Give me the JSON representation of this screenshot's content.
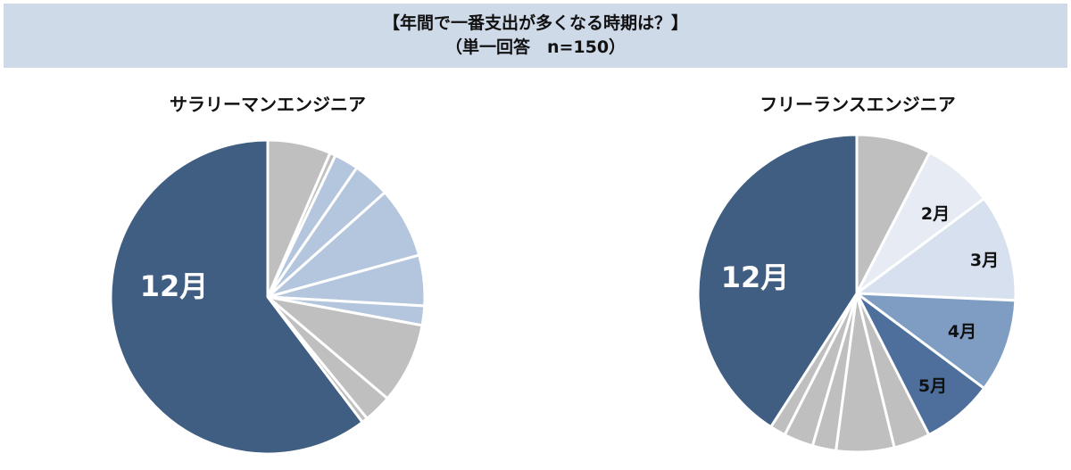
{
  "header": {
    "line1": "【年間で一番支出が多くなる時期は？】",
    "line2": "（単一回答　n=150）"
  },
  "chart_data": [
    {
      "type": "pie",
      "title": "サラリーマンエンジニア",
      "start_angle_deg": 0,
      "direction": "clockwise",
      "slices": [
        {
          "label": "",
          "value": 6.5,
          "color": "#bfbfbf"
        },
        {
          "label": "",
          "value": 0.6,
          "color": "#bfbfbf"
        },
        {
          "label": "",
          "value": 2.5,
          "color": "#b4c6dd"
        },
        {
          "label": "",
          "value": 3.8,
          "color": "#b4c6dd"
        },
        {
          "label": "",
          "value": 7.3,
          "color": "#b4c6dd"
        },
        {
          "label": "",
          "value": 5.2,
          "color": "#b4c6dd"
        },
        {
          "label": "",
          "value": 2.0,
          "color": "#b4c6dd"
        },
        {
          "label": "",
          "value": 8.3,
          "color": "#bfbfbf"
        },
        {
          "label": "",
          "value": 2.9,
          "color": "#bfbfbf"
        },
        {
          "label": "",
          "value": 0.6,
          "color": "#bfbfbf"
        },
        {
          "label": "12月",
          "value": 60.3,
          "color": "#3f5e82"
        }
      ]
    },
    {
      "type": "pie",
      "title": "フリーランスエンジニア",
      "start_angle_deg": 0,
      "direction": "clockwise",
      "slices": [
        {
          "label": "",
          "value": 7.6,
          "color": "#bfbfbf"
        },
        {
          "label": "2月",
          "value": 7.2,
          "color": "#e6ebf4"
        },
        {
          "label": "3月",
          "value": 10.9,
          "color": "#d7e0ee"
        },
        {
          "label": "4月",
          "value": 9.5,
          "color": "#7f9dc3"
        },
        {
          "label": "5月",
          "value": 7.3,
          "color": "#4e6e9c"
        },
        {
          "label": "",
          "value": 3.7,
          "color": "#bfbfbf"
        },
        {
          "label": "",
          "value": 5.9,
          "color": "#bfbfbf"
        },
        {
          "label": "",
          "value": 2.4,
          "color": "#bfbfbf"
        },
        {
          "label": "",
          "value": 3.0,
          "color": "#bfbfbf"
        },
        {
          "label": "",
          "value": 1.6,
          "color": "#bfbfbf"
        },
        {
          "label": "12月",
          "value": 40.9,
          "color": "#3f5e82"
        }
      ]
    }
  ]
}
